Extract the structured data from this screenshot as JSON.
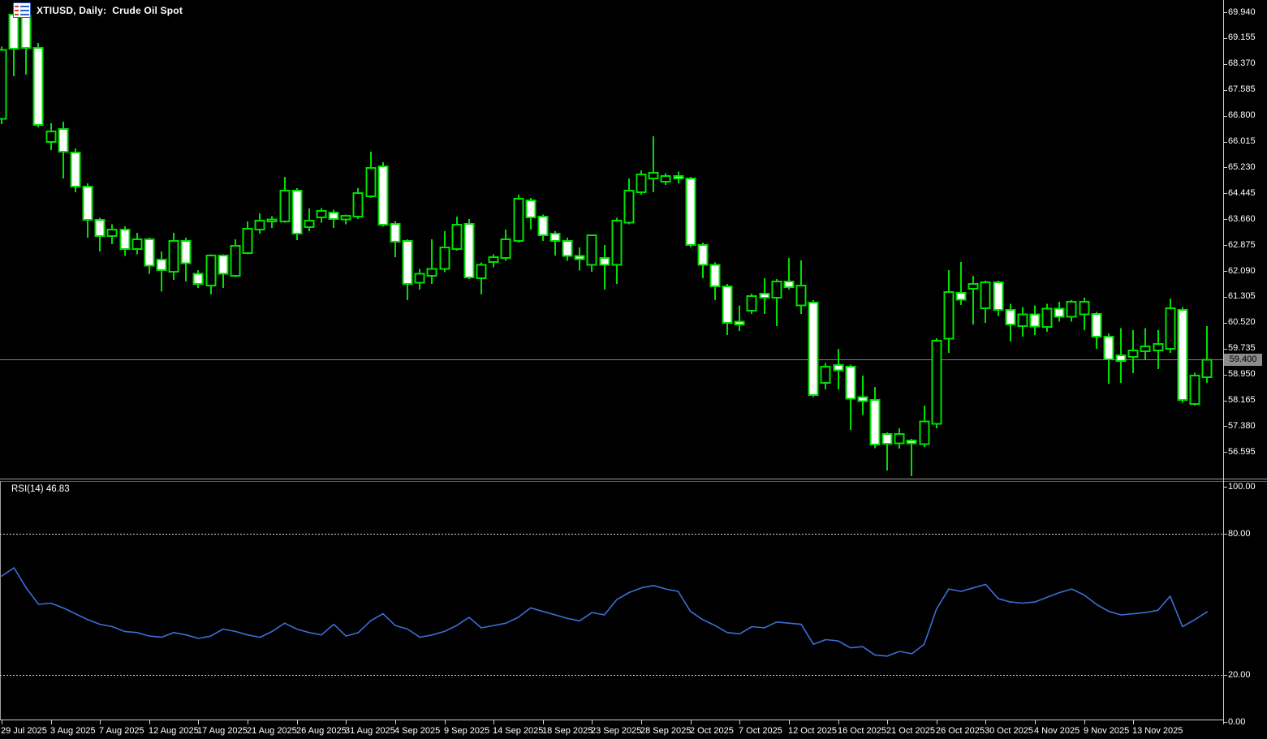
{
  "header": {
    "symbol_title": "XTIUSD, Daily:  Crude Oil Spot",
    "chart_icon": "candlestick-chart-icon"
  },
  "price_axis": {
    "current_price_label": "59.400",
    "tick_values": [
      69.94,
      69.155,
      68.37,
      67.585,
      66.8,
      66.015,
      65.23,
      64.445,
      63.66,
      62.875,
      62.09,
      61.305,
      60.52,
      59.735,
      58.95,
      58.165,
      57.38,
      56.595
    ]
  },
  "time_axis": {
    "labels": [
      "29 Jul 2025",
      "3 Aug 2025",
      "7 Aug 2025",
      "12 Aug 2025",
      "17 Aug 2025",
      "21 Aug 2025",
      "26 Aug 2025",
      "31 Aug 2025",
      "4 Sep 2025",
      "9 Sep 2025",
      "14 Sep 2025",
      "18 Sep 2025",
      "23 Sep 2025",
      "28 Sep 2025",
      "2 Oct 2025",
      "7 Oct 2025",
      "12 Oct 2025",
      "16 Oct 2025",
      "21 Oct 2025",
      "26 Oct 2025",
      "30 Oct 2025",
      "4 Nov 2025",
      "9 Nov 2025",
      "13 Nov 2025"
    ],
    "label_bar_indices": [
      0,
      4,
      8,
      12,
      16,
      20,
      24,
      28,
      32,
      36,
      40,
      44,
      48,
      52,
      56,
      60,
      64,
      68,
      72,
      76,
      80,
      84,
      88,
      92
    ]
  },
  "rsi": {
    "label": "RSI(14) 46.83",
    "name": "RSI",
    "period": 14,
    "value": 46.83,
    "axis_labels": [
      "100.00",
      "80.00",
      "20.00",
      "0.00"
    ],
    "axis_values": [
      100,
      80,
      20,
      0
    ],
    "levels": [
      80,
      20
    ]
  },
  "colors": {
    "background": "#000000",
    "candle_outline": "#00E000",
    "bear_body": "#FFFFFF",
    "bull_body": "#000000",
    "rsi_line": "#3B6FD6",
    "axis_text": "#FFFFFF",
    "axis_line": "#D0D0D0",
    "level_dashed": "#D2D2D2",
    "current_price_line": "#808080",
    "price_tag_bg": "#8C8C8C",
    "price_tag_text": "#000000",
    "separator_light": "#9C9C9C",
    "separator_dark": "#5E5E5E"
  },
  "chart_data": {
    "type": "candlestick",
    "title": "XTIUSD, Daily: Crude Oil Spot",
    "symbol": "XTIUSD",
    "timeframe": "Daily",
    "description": "Crude Oil Spot",
    "ylim_price": [
      55.8,
      70.3
    ],
    "price_tick_step": 0.785,
    "current_price": 59.4,
    "x_tick_labels": [
      "29 Jul 2025",
      "3 Aug 2025",
      "7 Aug 2025",
      "12 Aug 2025",
      "17 Aug 2025",
      "21 Aug 2025",
      "26 Aug 2025",
      "31 Aug 2025",
      "4 Sep 2025",
      "9 Sep 2025",
      "14 Sep 2025",
      "18 Sep 2025",
      "23 Sep 2025",
      "28 Sep 2025",
      "2 Oct 2025",
      "7 Oct 2025",
      "12 Oct 2025",
      "16 Oct 2025",
      "21 Oct 2025",
      "26 Oct 2025",
      "30 Oct 2025",
      "4 Nov 2025",
      "9 Nov 2025",
      "13 Nov 2025"
    ],
    "x_tick_bar_indices": [
      0,
      4,
      8,
      12,
      16,
      20,
      24,
      28,
      32,
      36,
      40,
      44,
      48,
      52,
      56,
      60,
      64,
      68,
      72,
      76,
      80,
      84,
      88,
      92
    ],
    "candle_format": [
      "open",
      "high",
      "low",
      "close"
    ],
    "candles": [
      [
        66.7,
        68.9,
        66.55,
        68.8
      ],
      [
        69.87,
        69.92,
        68.0,
        68.83
      ],
      [
        69.84,
        69.88,
        68.05,
        68.86
      ],
      [
        68.86,
        69.0,
        66.45,
        66.52
      ],
      [
        66.0,
        66.57,
        65.76,
        66.32
      ],
      [
        66.4,
        66.62,
        64.9,
        65.71
      ],
      [
        65.68,
        65.8,
        64.48,
        64.65
      ],
      [
        64.65,
        64.75,
        63.1,
        63.64
      ],
      [
        63.64,
        63.7,
        62.68,
        63.15
      ],
      [
        63.15,
        63.5,
        62.9,
        63.35
      ],
      [
        63.35,
        63.45,
        62.55,
        62.75
      ],
      [
        62.75,
        63.25,
        62.6,
        63.05
      ],
      [
        63.05,
        63.1,
        62.0,
        62.25
      ],
      [
        62.44,
        62.68,
        61.46,
        62.12
      ],
      [
        62.07,
        63.25,
        61.82,
        63.0
      ],
      [
        63.0,
        63.1,
        61.77,
        62.32
      ],
      [
        62.0,
        62.12,
        61.58,
        61.7
      ],
      [
        61.65,
        62.6,
        61.38,
        62.56
      ],
      [
        62.56,
        62.6,
        61.58,
        62.0
      ],
      [
        61.94,
        63.05,
        61.9,
        62.85
      ],
      [
        62.63,
        63.59,
        62.6,
        63.37
      ],
      [
        63.34,
        63.84,
        63.22,
        63.62
      ],
      [
        63.59,
        63.75,
        63.4,
        63.65
      ],
      [
        63.59,
        64.94,
        63.55,
        64.53
      ],
      [
        64.53,
        64.6,
        63.03,
        63.22
      ],
      [
        63.42,
        63.99,
        63.3,
        63.62
      ],
      [
        63.71,
        64.0,
        63.55,
        63.91
      ],
      [
        63.86,
        63.95,
        63.4,
        63.66
      ],
      [
        63.66,
        63.8,
        63.5,
        63.76
      ],
      [
        63.74,
        64.6,
        63.66,
        64.45
      ],
      [
        64.36,
        65.71,
        64.3,
        65.22
      ],
      [
        65.26,
        65.39,
        63.45,
        63.49
      ],
      [
        63.52,
        63.6,
        62.51,
        62.98
      ],
      [
        63.0,
        63.05,
        61.21,
        61.7
      ],
      [
        61.74,
        62.15,
        61.53,
        62.0
      ],
      [
        61.94,
        63.05,
        61.7,
        62.15
      ],
      [
        62.15,
        63.3,
        62.05,
        62.81
      ],
      [
        62.76,
        63.74,
        62.7,
        63.49
      ],
      [
        63.52,
        63.66,
        61.85,
        61.89
      ],
      [
        61.87,
        62.35,
        61.38,
        62.27
      ],
      [
        62.36,
        62.6,
        62.2,
        62.51
      ],
      [
        62.48,
        63.35,
        62.4,
        63.05
      ],
      [
        63.0,
        64.4,
        62.95,
        64.28
      ],
      [
        64.23,
        64.3,
        63.35,
        63.71
      ],
      [
        63.74,
        63.8,
        63.0,
        63.17
      ],
      [
        63.22,
        63.3,
        62.56,
        63.0
      ],
      [
        63.0,
        63.1,
        62.4,
        62.55
      ],
      [
        62.55,
        62.8,
        62.1,
        62.45
      ],
      [
        62.27,
        63.2,
        62.07,
        63.17
      ],
      [
        62.48,
        62.88,
        61.53,
        62.27
      ],
      [
        62.27,
        63.7,
        61.7,
        63.62
      ],
      [
        63.55,
        64.9,
        63.5,
        64.53
      ],
      [
        64.48,
        65.14,
        64.4,
        65.02
      ],
      [
        64.9,
        66.18,
        64.48,
        65.07
      ],
      [
        64.8,
        65.05,
        64.7,
        64.97
      ],
      [
        64.97,
        65.1,
        64.75,
        64.9
      ],
      [
        64.9,
        64.95,
        62.81,
        62.88
      ],
      [
        62.88,
        62.95,
        61.87,
        62.27
      ],
      [
        62.27,
        62.35,
        61.21,
        61.62
      ],
      [
        61.62,
        61.7,
        60.15,
        60.52
      ],
      [
        60.55,
        61.04,
        60.27,
        60.47
      ],
      [
        60.89,
        61.4,
        60.79,
        61.33
      ],
      [
        61.4,
        61.87,
        60.79,
        61.28
      ],
      [
        61.28,
        61.85,
        60.42,
        61.77
      ],
      [
        61.77,
        62.48,
        61.53,
        61.6
      ],
      [
        61.04,
        62.41,
        60.79,
        61.65
      ],
      [
        61.13,
        61.2,
        58.26,
        58.33
      ],
      [
        58.7,
        59.3,
        58.5,
        59.19
      ],
      [
        59.24,
        59.73,
        58.5,
        59.07
      ],
      [
        59.19,
        59.25,
        57.27,
        58.21
      ],
      [
        58.26,
        58.92,
        57.72,
        58.14
      ],
      [
        58.18,
        58.57,
        56.71,
        56.83
      ],
      [
        57.15,
        57.2,
        56.04,
        56.85
      ],
      [
        56.86,
        57.32,
        56.7,
        57.15
      ],
      [
        56.95,
        57.0,
        55.87,
        56.86
      ],
      [
        56.83,
        58.01,
        56.75,
        57.52
      ],
      [
        57.45,
        60.05,
        57.32,
        59.98
      ],
      [
        60.03,
        62.12,
        59.61,
        61.45
      ],
      [
        61.43,
        62.36,
        61.06,
        61.21
      ],
      [
        61.55,
        61.94,
        60.47,
        61.7
      ],
      [
        60.96,
        61.8,
        60.52,
        61.74
      ],
      [
        61.74,
        61.8,
        60.72,
        60.91
      ],
      [
        60.91,
        61.1,
        59.95,
        60.47
      ],
      [
        60.42,
        61.0,
        60.1,
        60.77
      ],
      [
        60.77,
        61.05,
        60.15,
        60.4
      ],
      [
        60.4,
        61.1,
        60.25,
        60.95
      ],
      [
        60.95,
        61.15,
        60.55,
        60.7
      ],
      [
        60.7,
        61.21,
        60.55,
        61.16
      ],
      [
        60.77,
        61.28,
        60.3,
        61.16
      ],
      [
        60.79,
        60.85,
        59.73,
        60.1
      ],
      [
        60.1,
        60.2,
        58.67,
        59.41
      ],
      [
        59.53,
        60.35,
        58.7,
        59.36
      ],
      [
        59.48,
        60.3,
        58.99,
        59.68
      ],
      [
        59.66,
        60.35,
        59.41,
        59.8
      ],
      [
        59.68,
        60.3,
        59.11,
        59.88
      ],
      [
        59.73,
        61.26,
        59.6,
        60.96
      ],
      [
        60.91,
        61.0,
        58.09,
        58.18
      ],
      [
        58.06,
        59.0,
        58.01,
        58.92
      ],
      [
        58.87,
        60.42,
        58.7,
        59.4
      ]
    ],
    "indicator": {
      "type": "line",
      "name": "RSI",
      "period": 14,
      "last_value": 46.83,
      "ylim": [
        0,
        100
      ],
      "levels": [
        80,
        20
      ],
      "values": [
        62,
        65.5,
        57,
        50,
        50.5,
        48.5,
        46,
        43.5,
        41.5,
        40.5,
        38.5,
        38,
        36.5,
        36,
        38,
        37,
        35.5,
        36.5,
        39.5,
        38.5,
        37,
        36,
        38.5,
        42,
        39.5,
        38,
        37,
        41.5,
        36.5,
        38,
        43,
        46,
        41,
        39.5,
        36,
        37,
        38.5,
        41,
        44.5,
        40,
        41,
        42,
        44.5,
        48.5,
        47,
        45.5,
        44,
        43,
        46.5,
        45.5,
        52,
        55,
        57,
        58,
        56.5,
        55.5,
        47,
        43.5,
        41,
        38,
        37.5,
        40.5,
        40,
        42.5,
        42,
        41.5,
        33,
        35,
        34.5,
        31.5,
        32,
        28.5,
        28,
        30,
        29,
        33,
        48,
        56.5,
        55.5,
        57,
        58.5,
        52.5,
        51,
        50.5,
        51,
        53,
        55,
        56.5,
        54,
        50,
        47,
        45.5,
        46,
        46.5,
        47.5,
        53.5,
        40.5,
        43.5,
        46.83
      ]
    }
  }
}
